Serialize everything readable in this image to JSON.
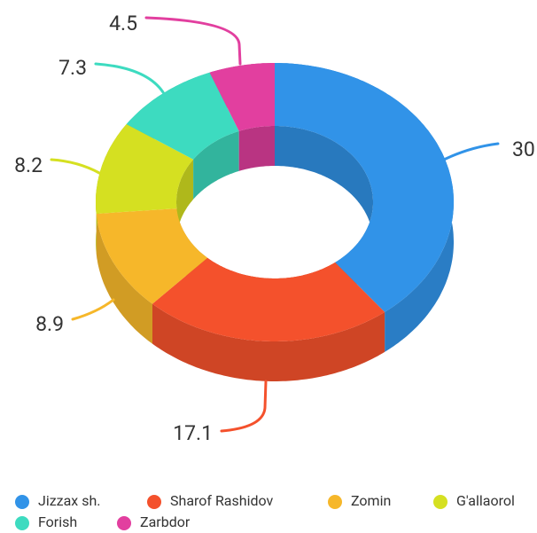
{
  "chart_data": {
    "type": "pie",
    "donut": true,
    "three_d": true,
    "categories": [
      "Jizzax sh.",
      "Sharof Rashidov",
      "Zomin",
      "G'allaorol",
      "Forish",
      "Zarbdor"
    ],
    "values": [
      30,
      17.1,
      8.9,
      8.2,
      7.3,
      4.5
    ],
    "colors": [
      "#3193e8",
      "#f4512c",
      "#f6b72a",
      "#d5e021",
      "#3ddbc0",
      "#e23f9f"
    ],
    "legend": "bottom"
  }
}
